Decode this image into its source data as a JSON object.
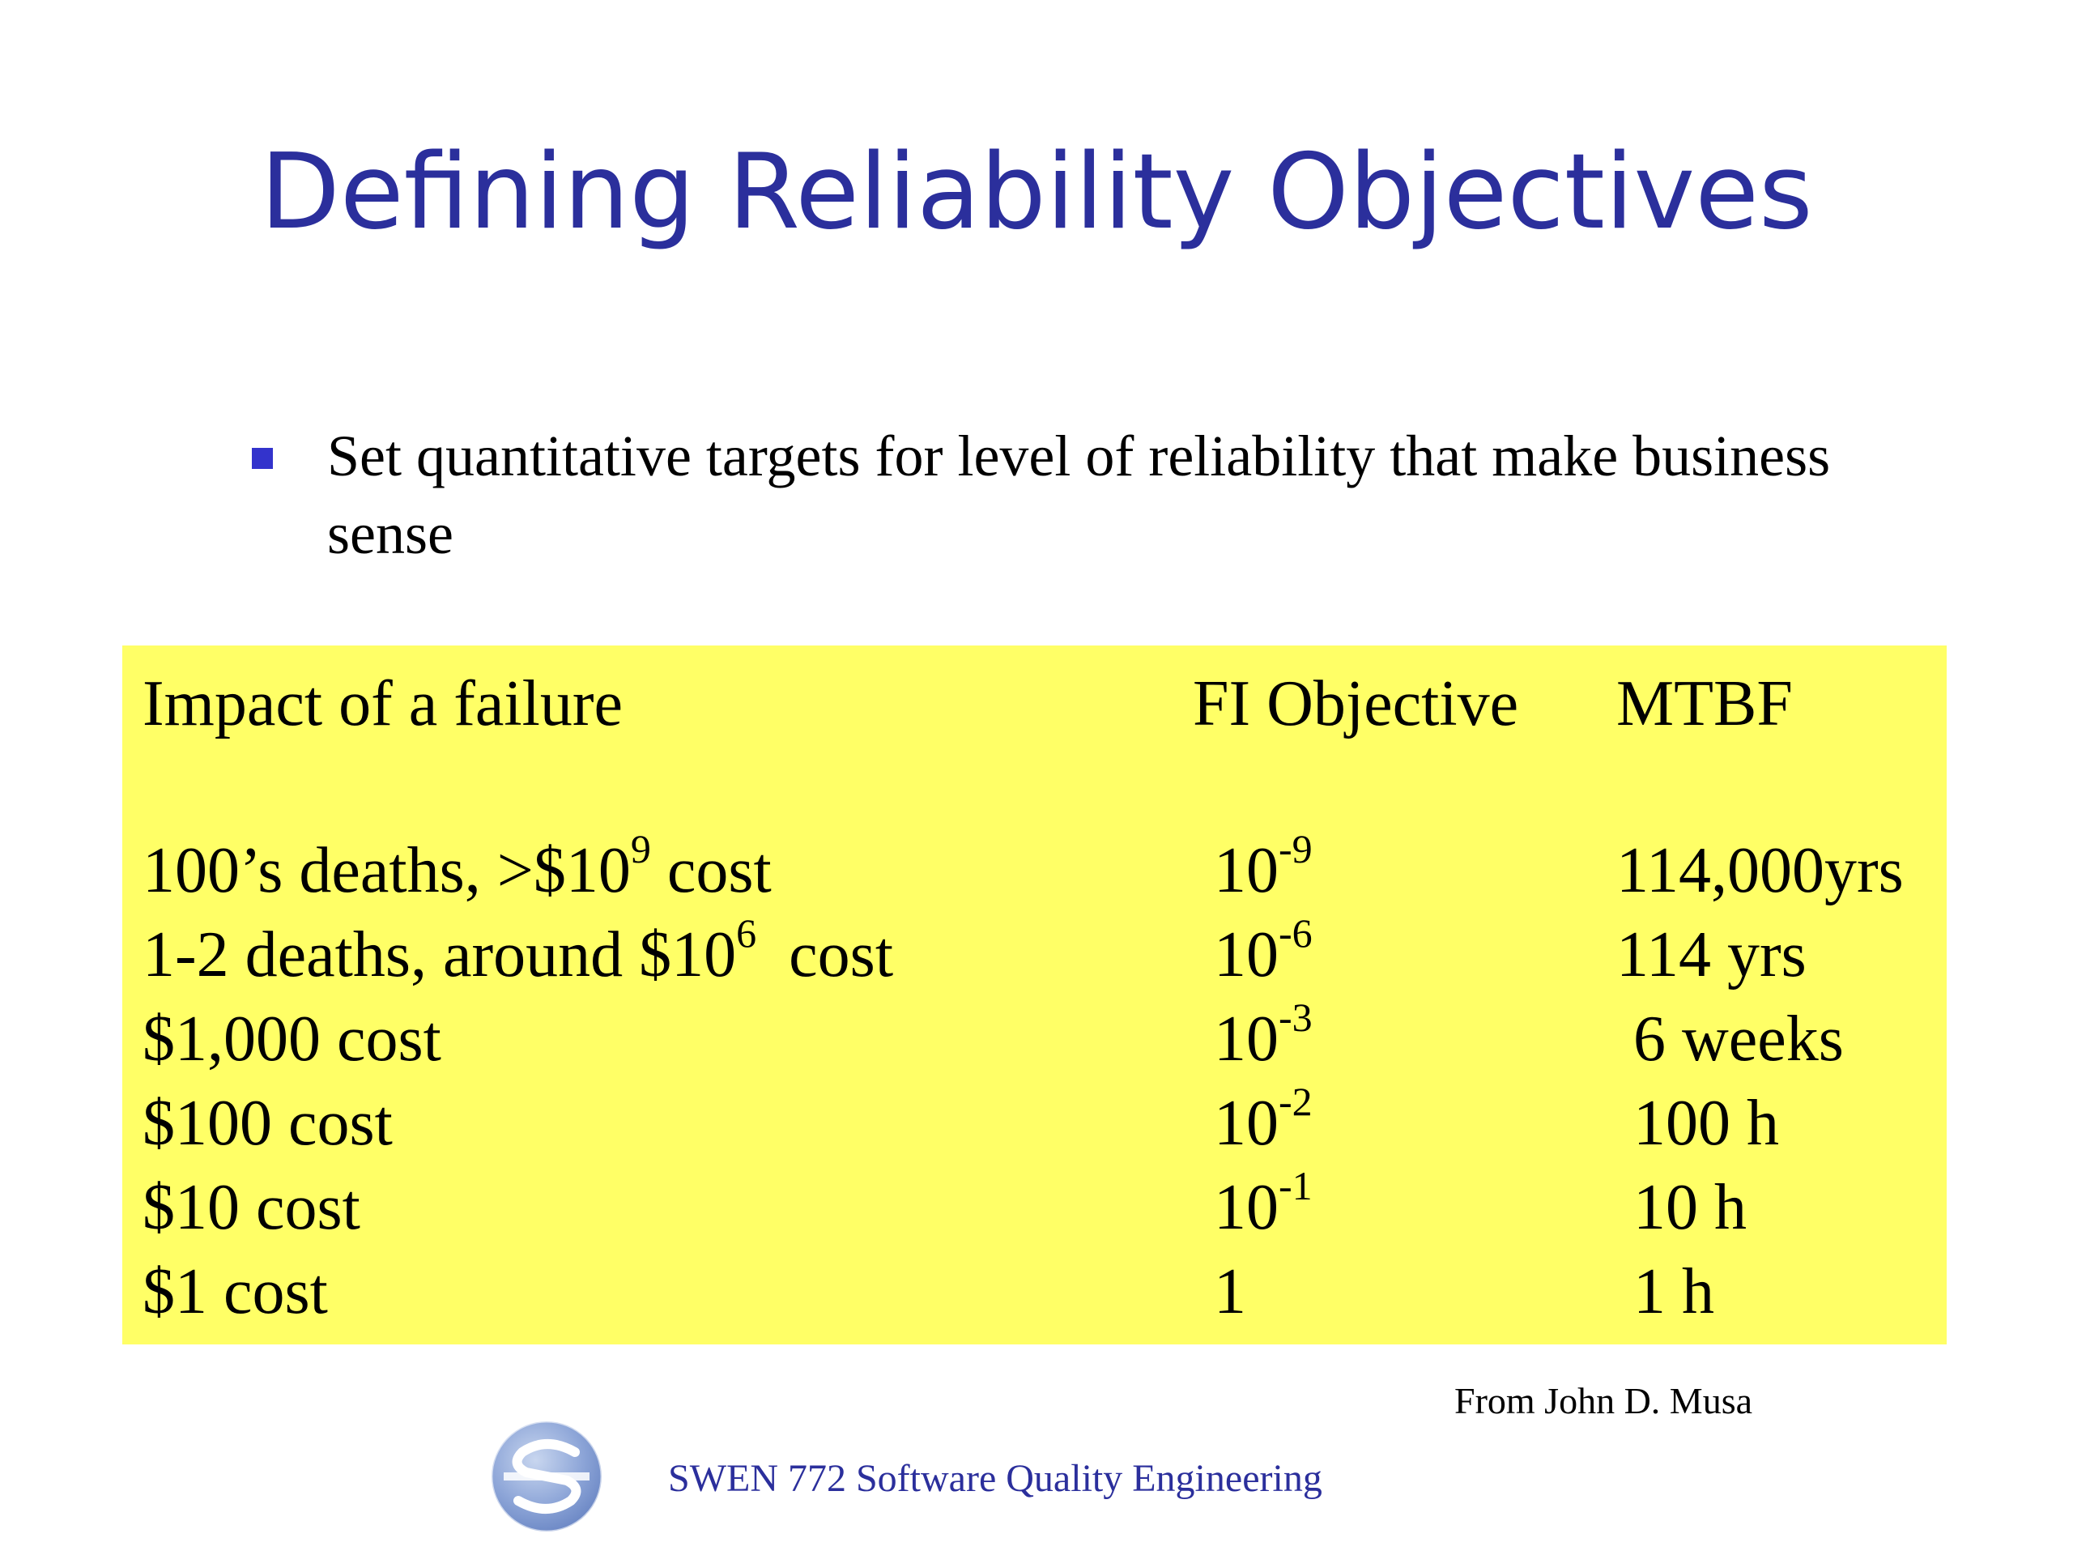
{
  "slide": {
    "title": "Defining Reliability Objectives",
    "bullet": "Set quantitative targets for level of reliability that make business sense",
    "credit": "From John D. Musa",
    "footer": "SWEN 772 Software Quality Engineering",
    "logo_icon": "swen-logo-icon"
  },
  "table": {
    "background_color": "#ffff66",
    "headers": {
      "impact": "Impact of a failure",
      "fi": "FI Objective",
      "mtbf": "MTBF"
    },
    "rows": [
      {
        "impact_pre": "100’s deaths, >$10",
        "impact_sup": "9",
        "impact_post": " cost",
        "fi_base": "10",
        "fi_exp": "-9",
        "mtbf": "114,000yrs"
      },
      {
        "impact_pre": "1-2 deaths, around $10",
        "impact_sup": "6",
        "impact_post": "  cost",
        "fi_base": "10",
        "fi_exp": "-6",
        "mtbf": "114 yrs"
      },
      {
        "impact_pre": "$1,000 cost",
        "impact_sup": "",
        "impact_post": "",
        "fi_base": "10",
        "fi_exp": "-3",
        "mtbf": "6 weeks"
      },
      {
        "impact_pre": "$100 cost",
        "impact_sup": "",
        "impact_post": "",
        "fi_base": "10",
        "fi_exp": "-2",
        "mtbf": "100 h"
      },
      {
        "impact_pre": "$10 cost",
        "impact_sup": "",
        "impact_post": "",
        "fi_base": "10",
        "fi_exp": "-1",
        "mtbf": "10 h"
      },
      {
        "impact_pre": "$1 cost",
        "impact_sup": "",
        "impact_post": "",
        "fi_base": "1",
        "fi_exp": "",
        "mtbf": "1 h"
      }
    ]
  },
  "colors": {
    "title": "#2b2f9c",
    "bullet": "#3333cc",
    "highlight": "#ffff66"
  }
}
